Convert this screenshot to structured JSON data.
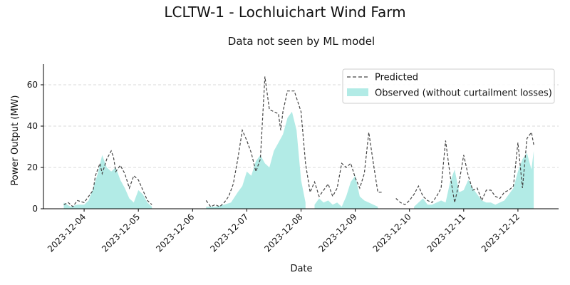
{
  "chart_data": {
    "type": "line",
    "title": "LCLTW-1 - Lochluichart Wind Farm",
    "subtitle": "Data not seen by ML model",
    "xlabel": "Date",
    "ylabel": "Power Output (MW)",
    "xlim": [
      "2023-12-03T06:00",
      "2023-12-12T18:00"
    ],
    "ylim": [
      0,
      70
    ],
    "y_ticks": [
      0,
      20,
      40,
      60
    ],
    "x_ticks": [
      "2023-12-04",
      "2023-12-05",
      "2023-12-06",
      "2023-12-07",
      "2023-12-08",
      "2023-12-09",
      "2023-12-10",
      "2023-12-11",
      "2023-12-12"
    ],
    "grid": "horizontal dashed",
    "legend_position": "top-right",
    "colors": {
      "predicted": "#444444",
      "observed": "#b2ebe6"
    },
    "series": [
      {
        "name": "Predicted",
        "style": "dashed-line",
        "x": [
          "2023-12-03T15:00",
          "2023-12-03T17:00",
          "2023-12-03T19:00",
          "2023-12-03T21:00",
          "2023-12-04T00:00",
          "2023-12-04T02:00",
          "2023-12-04T04:00",
          "2023-12-04T05:00",
          "2023-12-04T07:00",
          "2023-12-04T08:00",
          "2023-12-04T10:00",
          "2023-12-04T12:00",
          "2023-12-04T13:00",
          "2023-12-04T14:00",
          "2023-12-04T16:00",
          "2023-12-04T18:00",
          "2023-12-04T20:00",
          "2023-12-04T22:00",
          "2023-12-05T00:00",
          "2023-12-05T02:00",
          "2023-12-05T04:00",
          "2023-12-05T06:00",
          null,
          "2023-12-06T06:00",
          "2023-12-06T08:00",
          "2023-12-06T10:00",
          "2023-12-06T12:00",
          "2023-12-06T14:00",
          "2023-12-06T16:00",
          "2023-12-06T18:00",
          "2023-12-06T20:00",
          "2023-12-06T22:00",
          "2023-12-07T00:00",
          "2023-12-07T02:00",
          "2023-12-07T04:00",
          "2023-12-07T06:00",
          "2023-12-07T08:00",
          "2023-12-07T10:00",
          "2023-12-07T12:00",
          "2023-12-07T14:00",
          "2023-12-07T15:00",
          "2023-12-07T16:00",
          "2023-12-07T18:00",
          "2023-12-07T21:00",
          "2023-12-08T00:00",
          "2023-12-08T02:00",
          "2023-12-08T04:00",
          "2023-12-08T06:00",
          "2023-12-08T08:00",
          "2023-12-08T10:00",
          "2023-12-08T12:00",
          "2023-12-08T14:00",
          "2023-12-08T16:00",
          "2023-12-08T18:00",
          "2023-12-08T20:00",
          "2023-12-08T22:00",
          "2023-12-09T00:00",
          "2023-12-09T02:00",
          "2023-12-09T04:00",
          "2023-12-09T06:00",
          "2023-12-09T08:00",
          "2023-12-09T10:00",
          "2023-12-09T12:00",
          null,
          "2023-12-09T18:00",
          "2023-12-09T20:00",
          "2023-12-09T22:00",
          "2023-12-10T00:00",
          "2023-12-10T02:00",
          "2023-12-10T04:00",
          "2023-12-10T06:00",
          "2023-12-10T08:00",
          "2023-12-10T10:00",
          "2023-12-10T12:00",
          "2023-12-10T14:00",
          "2023-12-10T16:00",
          "2023-12-10T18:00",
          "2023-12-10T20:00",
          "2023-12-10T22:00",
          "2023-12-11T00:00",
          "2023-12-11T02:00",
          "2023-12-11T04:00",
          "2023-12-11T06:00",
          "2023-12-11T08:00",
          "2023-12-11T10:00",
          "2023-12-11T12:00",
          "2023-12-11T14:00",
          "2023-12-11T16:00",
          "2023-12-11T18:00",
          "2023-12-11T20:00",
          "2023-12-11T22:00",
          "2023-12-12T00:00",
          "2023-12-12T02:00",
          "2023-12-12T04:00",
          "2023-12-12T06:00",
          "2023-12-12T07:00"
        ],
        "y": [
          2,
          3,
          1,
          4,
          3,
          6,
          9,
          16,
          22,
          17,
          24,
          28,
          25,
          18,
          21,
          17,
          10,
          16,
          14,
          9,
          4,
          2,
          null,
          4,
          1,
          2,
          1,
          3,
          6,
          12,
          24,
          38,
          33,
          27,
          18,
          24,
          64,
          48,
          47,
          46,
          38,
          47,
          57,
          57,
          47,
          22,
          8,
          13,
          6,
          9,
          12,
          6,
          10,
          22,
          20,
          22,
          15,
          10,
          17,
          37,
          22,
          8,
          8,
          null,
          5,
          3,
          2,
          4,
          7,
          11,
          6,
          4,
          3,
          6,
          10,
          33,
          16,
          3,
          13,
          26,
          16,
          9,
          10,
          4,
          9,
          9,
          6,
          5,
          8,
          9,
          11,
          32,
          10,
          34,
          37,
          31
        ]
      },
      {
        "name": "Observed (without curtailment losses)",
        "style": "filled-area",
        "x": [
          "2023-12-03T15:00",
          "2023-12-03T18:00",
          "2023-12-03T21:00",
          "2023-12-04T00:00",
          "2023-12-04T02:00",
          "2023-12-04T04:00",
          "2023-12-04T06:00",
          "2023-12-04T08:00",
          "2023-12-04T10:00",
          "2023-12-04T12:00",
          "2023-12-04T14:00",
          "2023-12-04T16:00",
          "2023-12-04T18:00",
          "2023-12-04T20:00",
          "2023-12-04T22:00",
          "2023-12-05T00:00",
          "2023-12-05T02:00",
          "2023-12-05T04:00",
          "2023-12-05T06:00",
          null,
          "2023-12-06T06:00",
          "2023-12-06T10:00",
          "2023-12-06T14:00",
          "2023-12-06T17:00",
          "2023-12-06T20:00",
          "2023-12-06T22:00",
          "2023-12-07T00:00",
          "2023-12-07T02:00",
          "2023-12-07T04:00",
          "2023-12-07T06:00",
          "2023-12-07T08:00",
          "2023-12-07T10:00",
          "2023-12-07T12:00",
          "2023-12-07T14:00",
          "2023-12-07T16:00",
          "2023-12-07T18:00",
          "2023-12-07T20:00",
          "2023-12-07T22:00",
          "2023-12-08T00:00",
          "2023-12-08T02:00",
          null,
          "2023-12-08T06:00",
          "2023-12-08T08:00",
          "2023-12-08T10:00",
          "2023-12-08T12:00",
          "2023-12-08T14:00",
          "2023-12-08T16:00",
          "2023-12-08T18:00",
          "2023-12-08T20:00",
          "2023-12-08T22:00",
          "2023-12-09T00:00",
          "2023-12-09T02:00",
          "2023-12-09T04:00",
          "2023-12-09T06:00",
          "2023-12-09T08:00",
          "2023-12-09T10:00",
          null,
          "2023-12-10T02:00",
          "2023-12-10T04:00",
          "2023-12-10T06:00",
          "2023-12-10T08:00",
          "2023-12-10T10:00",
          "2023-12-10T12:00",
          "2023-12-10T14:00",
          "2023-12-10T16:00",
          "2023-12-10T18:00",
          "2023-12-10T20:00",
          "2023-12-10T22:00",
          "2023-12-11T00:00",
          "2023-12-11T02:00",
          "2023-12-11T04:00",
          "2023-12-11T06:00",
          "2023-12-11T08:00",
          "2023-12-11T10:00",
          "2023-12-11T12:00",
          "2023-12-11T14:00",
          "2023-12-11T16:00",
          "2023-12-11T18:00",
          "2023-12-11T20:00",
          "2023-12-11T22:00",
          "2023-12-12T00:00",
          "2023-12-12T02:00",
          "2023-12-12T04:00",
          "2023-12-12T06:00",
          "2023-12-12T07:00"
        ],
        "y": [
          3,
          1,
          2,
          2,
          4,
          10,
          17,
          26,
          20,
          18,
          20,
          14,
          10,
          5,
          3,
          9,
          7,
          3,
          1,
          null,
          1,
          1,
          2,
          3,
          8,
          11,
          18,
          16,
          23,
          26,
          22,
          20,
          28,
          32,
          36,
          44,
          47,
          38,
          14,
          3,
          null,
          2,
          5,
          3,
          4,
          2,
          3,
          1,
          6,
          13,
          16,
          6,
          4,
          3,
          2,
          1,
          null,
          1,
          3,
          5,
          2,
          2,
          3,
          4,
          3,
          13,
          19,
          8,
          9,
          14,
          10,
          7,
          4,
          3,
          3,
          2,
          3,
          4,
          7,
          10,
          18,
          24,
          27,
          19,
          28
        ]
      }
    ]
  }
}
